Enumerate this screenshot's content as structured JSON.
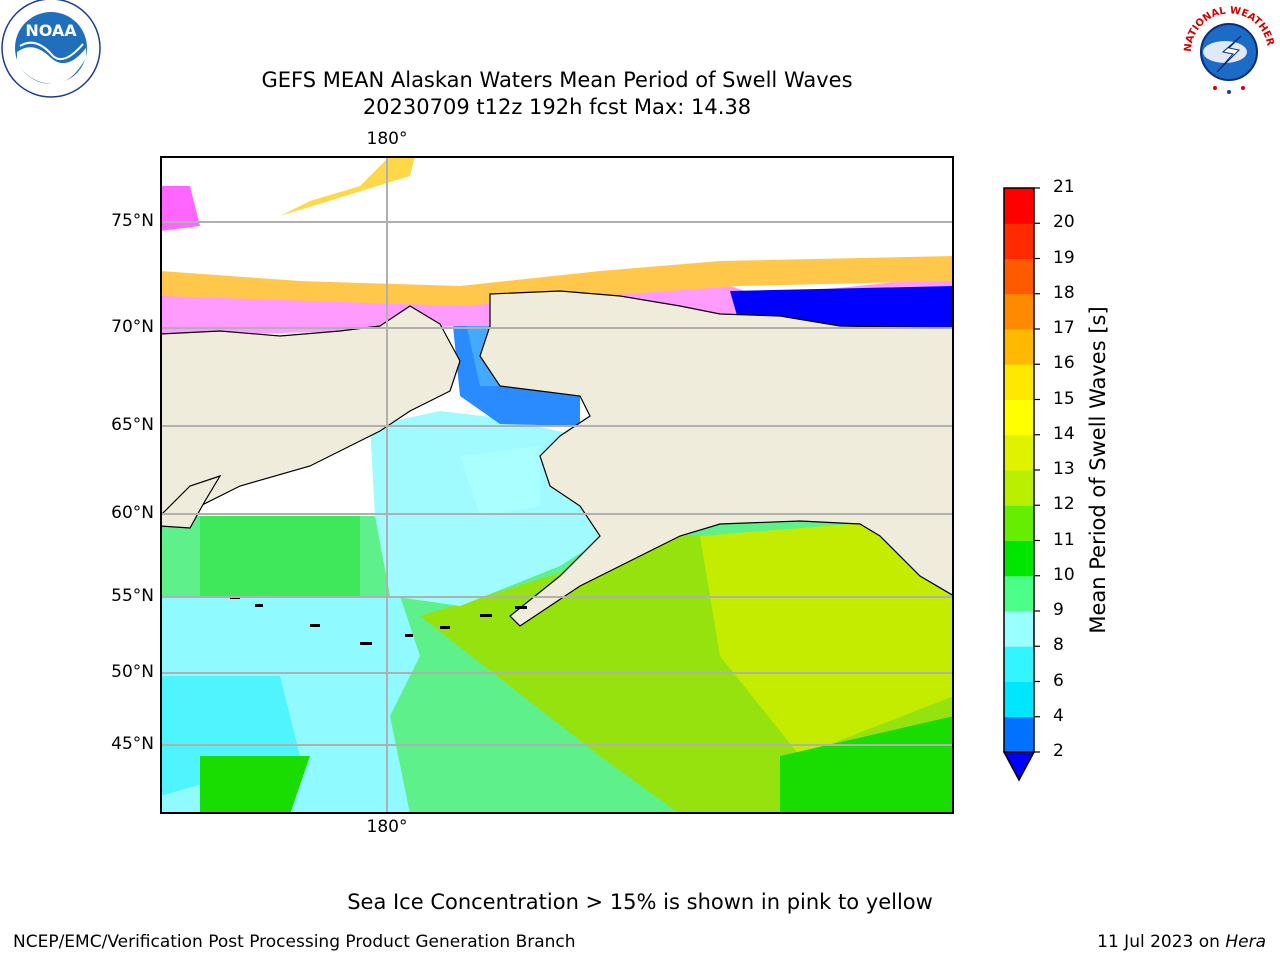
{
  "title": {
    "line1": "GEFS MEAN Alaskan Waters Mean Period of Swell Waves",
    "line2": "20230709 t12z 192h fcst   Max: 14.38"
  },
  "map": {
    "top_longitude_label": "180°",
    "bottom_longitude_label": "180°",
    "latitude_labels": [
      {
        "label": "75°N",
        "lat": 75
      },
      {
        "label": "70°N",
        "lat": 70
      },
      {
        "label": "65°N",
        "lat": 65
      },
      {
        "label": "60°N",
        "lat": 60
      },
      {
        "label": "55°N",
        "lat": 55
      },
      {
        "label": "50°N",
        "lat": 50
      },
      {
        "label": "45°N",
        "lat": 45
      }
    ],
    "land_color": "#efecdc",
    "ocean_colors_note": "swell period shading"
  },
  "colorbar": {
    "title": "Mean Period of Swell Waves [s]",
    "levels": [
      "2",
      "4",
      "6",
      "8",
      "9",
      "10",
      "11",
      "12",
      "13",
      "14",
      "15",
      "16",
      "17",
      "18",
      "19",
      "20",
      "21"
    ],
    "colors": [
      "#0072ff",
      "#00e6ff",
      "#33f5ff",
      "#99ffff",
      "#4cff88",
      "#00e600",
      "#66ee00",
      "#b8f000",
      "#e0f200",
      "#ffff00",
      "#ffe800",
      "#ffba00",
      "#ff8a00",
      "#ff5a00",
      "#ff2a00",
      "#ff0000"
    ],
    "under_color": "#0000ff"
  },
  "note": "Sea Ice Concentration > 15% is shown in pink to yellow",
  "footer": {
    "left": "NCEP/EMC/Verification Post Processing Product Generation Branch",
    "right_date": "11 Jul 2023 on ",
    "right_machine": "Hera"
  },
  "logos": {
    "noaa_text": "NOAA",
    "nws_text": "NATIONAL WEATHER SERVICE"
  }
}
